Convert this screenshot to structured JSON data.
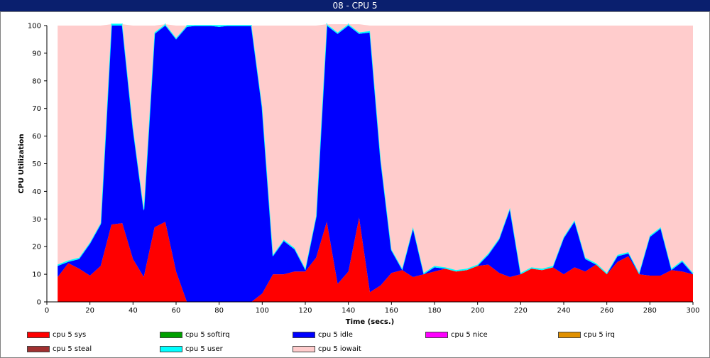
{
  "window": {
    "title": "08 - CPU 5"
  },
  "chart_data": {
    "type": "area",
    "stacked": true,
    "xlabel": "Time (secs.)",
    "ylabel": "CPU Utilization",
    "xlim": [
      0,
      300
    ],
    "ylim": [
      0,
      100
    ],
    "xticks": [
      0,
      20,
      40,
      60,
      80,
      100,
      120,
      140,
      160,
      180,
      200,
      220,
      240,
      260,
      280,
      300
    ],
    "yticks": [
      0,
      10,
      20,
      30,
      40,
      50,
      60,
      70,
      80,
      90,
      100
    ],
    "grid": false,
    "legend_position": "bottom",
    "x": [
      5,
      10,
      15,
      20,
      25,
      30,
      35,
      40,
      45,
      50,
      55,
      60,
      65,
      70,
      75,
      80,
      85,
      90,
      95,
      100,
      105,
      110,
      115,
      120,
      125,
      130,
      135,
      140,
      145,
      150,
      155,
      160,
      165,
      170,
      175,
      180,
      185,
      190,
      195,
      200,
      205,
      210,
      215,
      220,
      225,
      230,
      235,
      240,
      245,
      250,
      255,
      260,
      265,
      270,
      275,
      280,
      285,
      290,
      295,
      300
    ],
    "series": [
      {
        "name": "cpu 5 sys",
        "color": "#ff0000",
        "values": [
          9,
          14,
          12,
          9.5,
          13,
          28,
          28.5,
          15.5,
          9,
          27,
          29,
          11,
          0,
          0,
          0,
          0,
          0,
          0,
          0,
          3,
          10,
          10,
          11,
          11,
          16,
          29,
          6.5,
          11,
          30.5,
          3.5,
          6,
          10.5,
          11.5,
          9,
          10,
          11,
          12,
          11,
          11.5,
          13,
          13.5,
          10.5,
          9,
          10,
          12,
          11.5,
          12.5,
          10,
          12.5,
          11,
          13.5,
          10,
          14.5,
          16.5,
          10,
          9.5,
          9.5,
          11.5,
          11,
          10
        ]
      },
      {
        "name": "cpu 5 softirq",
        "color": "#00a000",
        "values": [
          0,
          0,
          0,
          0,
          0,
          0,
          0,
          0,
          0,
          0,
          0,
          0,
          0,
          0,
          0,
          0,
          0,
          0,
          0,
          0,
          0,
          0,
          0,
          0,
          0,
          0,
          0,
          0,
          0,
          0,
          0,
          0,
          0,
          0,
          0,
          0,
          0,
          0,
          0,
          0,
          0,
          0,
          0,
          0,
          0,
          0,
          0,
          0,
          0,
          0,
          0,
          0,
          0,
          0,
          0,
          0,
          0,
          0,
          0,
          0
        ]
      },
      {
        "name": "cpu 5 idle",
        "color": "#0000ff",
        "values": [
          4,
          0.5,
          3.5,
          11.5,
          15,
          72,
          71.5,
          47,
          24,
          70,
          71,
          84,
          99.5,
          100,
          100,
          99.5,
          100,
          100,
          100,
          67,
          6.5,
          12,
          8,
          0.5,
          14.5,
          71,
          90.5,
          89,
          66.5,
          94,
          45,
          8,
          0,
          17.5,
          0,
          1.5,
          0,
          0,
          0,
          0,
          3.5,
          12,
          24.5,
          0,
          0,
          0,
          0,
          13,
          16.5,
          4.5,
          0,
          0,
          2,
          1,
          0,
          14,
          17,
          0,
          3.5,
          0
        ]
      },
      {
        "name": "cpu 5 nice",
        "color": "#ff00ff",
        "values": [
          0,
          0,
          0,
          0,
          0,
          0,
          0,
          0,
          0,
          0,
          0,
          0,
          0,
          0,
          0,
          0,
          0,
          0,
          0,
          0,
          0,
          0,
          0,
          0,
          0,
          0,
          0,
          0,
          0,
          0,
          0,
          0,
          0,
          0,
          0,
          0,
          0,
          0,
          0,
          0,
          0,
          0,
          0,
          0,
          0,
          0,
          0,
          0,
          0,
          0,
          0,
          0,
          0,
          0,
          0,
          0,
          0,
          0,
          0,
          0
        ]
      },
      {
        "name": "cpu 5 irq",
        "color": "#e09000",
        "values": [
          0,
          0,
          0,
          0,
          0,
          0,
          0,
          0,
          0,
          0,
          0,
          0,
          0,
          0,
          0,
          0,
          0,
          0,
          0,
          0,
          0,
          0,
          0,
          0,
          0,
          0,
          0,
          0,
          0,
          0,
          0,
          0,
          0,
          0,
          0,
          0,
          0,
          0,
          0,
          0,
          0,
          0,
          0,
          0,
          0,
          0,
          0,
          0,
          0,
          0,
          0,
          0,
          0,
          0,
          0,
          0,
          0,
          0,
          0,
          0
        ]
      },
      {
        "name": "cpu 5 steal",
        "color": "#a03030",
        "values": [
          0,
          0,
          0,
          0,
          0,
          0,
          0,
          0,
          0,
          0,
          0,
          0,
          0,
          0,
          0,
          0,
          0,
          0,
          0,
          0,
          0,
          0,
          0,
          0,
          0,
          0,
          0,
          0,
          0,
          0,
          0,
          0,
          0,
          0,
          0,
          0,
          0,
          0,
          0,
          0,
          0,
          0,
          0,
          0,
          0,
          0,
          0,
          0,
          0,
          0,
          0,
          0,
          0,
          0,
          0,
          0,
          0,
          0,
          0,
          0
        ]
      },
      {
        "name": "cpu 5 user",
        "color": "#00ffff",
        "values": [
          0.5,
          0.5,
          0.5,
          0.5,
          0.5,
          0.5,
          0.5,
          0.5,
          0.5,
          0.5,
          0.5,
          0.5,
          0.5,
          0,
          0,
          0.5,
          0,
          0,
          0,
          0.5,
          0.5,
          0.5,
          0.5,
          0.5,
          0.5,
          0.5,
          0.5,
          0.5,
          0.5,
          0.5,
          0.5,
          0.5,
          0.5,
          0.5,
          0.5,
          0.5,
          0.5,
          0.5,
          0.5,
          0.5,
          0.5,
          0.5,
          0.5,
          0.5,
          0.5,
          0.5,
          0.5,
          0.5,
          0.5,
          0.5,
          0.5,
          0.5,
          0.5,
          0.5,
          0.5,
          0.5,
          0.5,
          0.5,
          0.5,
          0.5
        ]
      },
      {
        "name": "cpu 5 iowait",
        "color": "#ffcccc",
        "values": [
          86.5,
          85,
          84,
          78.5,
          71.5,
          0,
          0,
          37,
          66.5,
          2.5,
          0,
          4.5,
          0,
          0,
          0,
          0,
          0,
          0,
          0,
          29.5,
          83,
          77.5,
          80.5,
          88,
          69,
          0,
          3,
          0,
          3,
          2,
          48.5,
          81,
          88,
          73,
          89.5,
          87,
          87.5,
          88.5,
          88,
          86.5,
          82.5,
          77,
          66,
          89.5,
          87.5,
          88,
          87,
          76.5,
          70.5,
          84,
          86,
          89.5,
          83,
          82,
          89.5,
          76,
          73,
          88,
          85,
          89.5
        ]
      }
    ]
  }
}
